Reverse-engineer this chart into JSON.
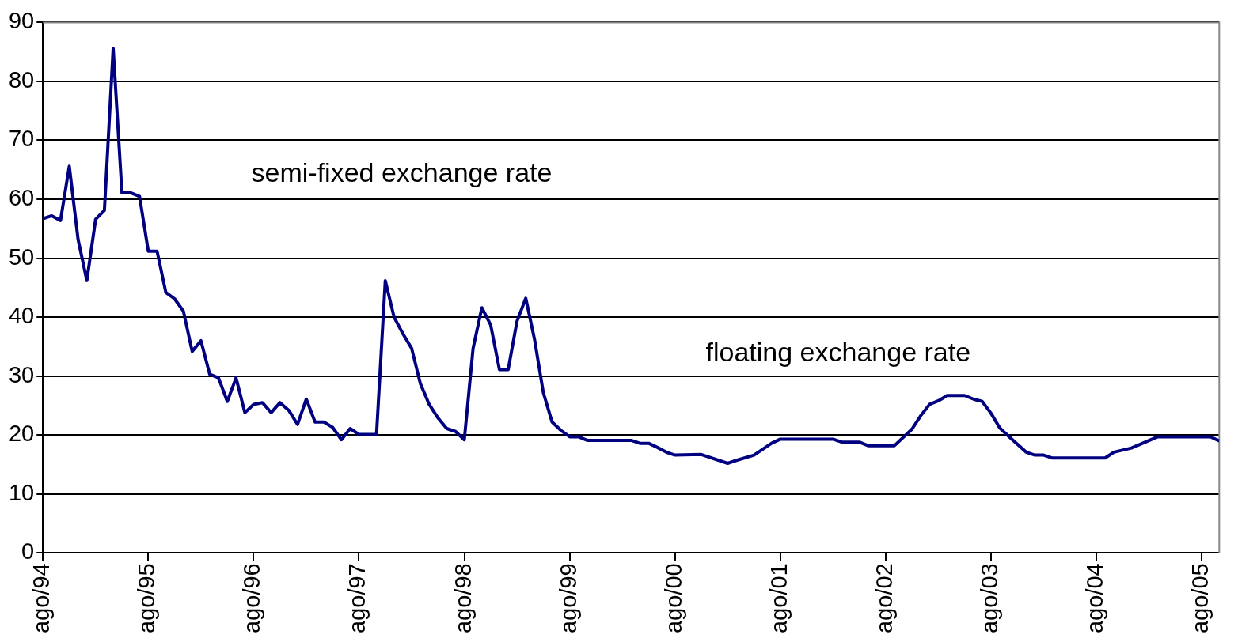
{
  "chart_data": {
    "type": "line",
    "x": [
      "1994-08",
      "1994-09",
      "1994-10",
      "1994-11",
      "1994-12",
      "1995-01",
      "1995-02",
      "1995-03",
      "1995-04",
      "1995-05",
      "1995-06",
      "1995-07",
      "1995-08",
      "1995-09",
      "1995-10",
      "1995-11",
      "1995-12",
      "1996-01",
      "1996-02",
      "1996-03",
      "1996-04",
      "1996-05",
      "1996-06",
      "1996-07",
      "1996-08",
      "1996-09",
      "1996-10",
      "1996-11",
      "1996-12",
      "1997-01",
      "1997-02",
      "1997-03",
      "1997-04",
      "1997-05",
      "1997-06",
      "1997-07",
      "1997-08",
      "1997-09",
      "1997-10",
      "1997-11",
      "1997-12",
      "1998-01",
      "1998-02",
      "1998-03",
      "1998-04",
      "1998-05",
      "1998-06",
      "1998-07",
      "1998-08",
      "1998-09",
      "1998-10",
      "1998-11",
      "1998-12",
      "1999-01",
      "1999-02",
      "1999-03",
      "1999-04",
      "1999-05",
      "1999-06",
      "1999-07",
      "1999-08",
      "1999-09",
      "1999-10",
      "2000-03",
      "2000-04",
      "2000-05",
      "2000-06",
      "2000-07",
      "2000-08",
      "2000-11",
      "2001-02",
      "2001-03",
      "2001-05",
      "2001-07",
      "2001-08",
      "2002-02",
      "2002-03",
      "2002-05",
      "2002-06",
      "2002-09",
      "2002-11",
      "2002-12",
      "2003-01",
      "2003-02",
      "2003-03",
      "2003-05",
      "2003-06",
      "2003-07",
      "2003-08",
      "2003-09",
      "2003-10",
      "2003-12",
      "2004-01",
      "2004-02",
      "2004-03",
      "2004-09",
      "2004-10",
      "2004-12",
      "2005-03",
      "2005-09",
      "2005-10"
    ],
    "series": [
      {
        "color": "#000080",
        "values": [
          56.7,
          57.2,
          56.4,
          65.6,
          53.2,
          46.2,
          56.6,
          58.1,
          85.6,
          61.1,
          61.1,
          60.5,
          51.2,
          51.2,
          44.2,
          43.1,
          41,
          34.2,
          36,
          30.3,
          29.7,
          25.7,
          29.7,
          23.8,
          25.2,
          25.5,
          23.8,
          25.5,
          24.2,
          21.8,
          26.1,
          22.2,
          22.2,
          21.3,
          19.2,
          21.1,
          20.1,
          20.1,
          20.1,
          46.2,
          40,
          37.2,
          34.7,
          28.7,
          25.2,
          22.9,
          21.1,
          20.6,
          19.2,
          34.7,
          41.6,
          38.7,
          31.1,
          31.1,
          39.3,
          43.2,
          36.2,
          27.2,
          22.2,
          20.8,
          19.7,
          19.7,
          19.1,
          19.1,
          18.6,
          18.6,
          17.9,
          17.1,
          16.6,
          16.7,
          15.2,
          15.7,
          16.6,
          18.6,
          19.3,
          19.3,
          18.8,
          18.8,
          18.2,
          18.2,
          21,
          23.3,
          25.2,
          25.8,
          26.7,
          26.7,
          26.1,
          25.7,
          23.7,
          21.2,
          19.8,
          17.1,
          16.6,
          16.6,
          16.1,
          16.1,
          17.1,
          17.8,
          19.7,
          19.7,
          19
        ]
      }
    ],
    "xlim": [
      "1994-08",
      "2005-10"
    ],
    "xticks": [
      {
        "value": "1994-08",
        "label": "ago/94"
      },
      {
        "value": "1995-08",
        "label": "ago/95"
      },
      {
        "value": "1996-08",
        "label": "ago/96"
      },
      {
        "value": "1997-08",
        "label": "ago/97"
      },
      {
        "value": "1998-08",
        "label": "ago/98"
      },
      {
        "value": "1999-08",
        "label": "ago/99"
      },
      {
        "value": "2000-08",
        "label": "ago/00"
      },
      {
        "value": "2001-08",
        "label": "ago/01"
      },
      {
        "value": "2002-08",
        "label": "ago/02"
      },
      {
        "value": "2003-08",
        "label": "ago/03"
      },
      {
        "value": "2004-08",
        "label": "ago/04"
      },
      {
        "value": "2005-08",
        "label": "ago/05"
      }
    ],
    "ylim": [
      0,
      90
    ],
    "yticks": [
      0,
      10,
      20,
      30,
      40,
      50,
      60,
      70,
      80,
      90
    ],
    "grid": "y",
    "legend": false,
    "marker": "none",
    "line_style": "solid",
    "annotations": [
      "semi-fixed exchange rate",
      "floating exchange rate"
    ]
  }
}
